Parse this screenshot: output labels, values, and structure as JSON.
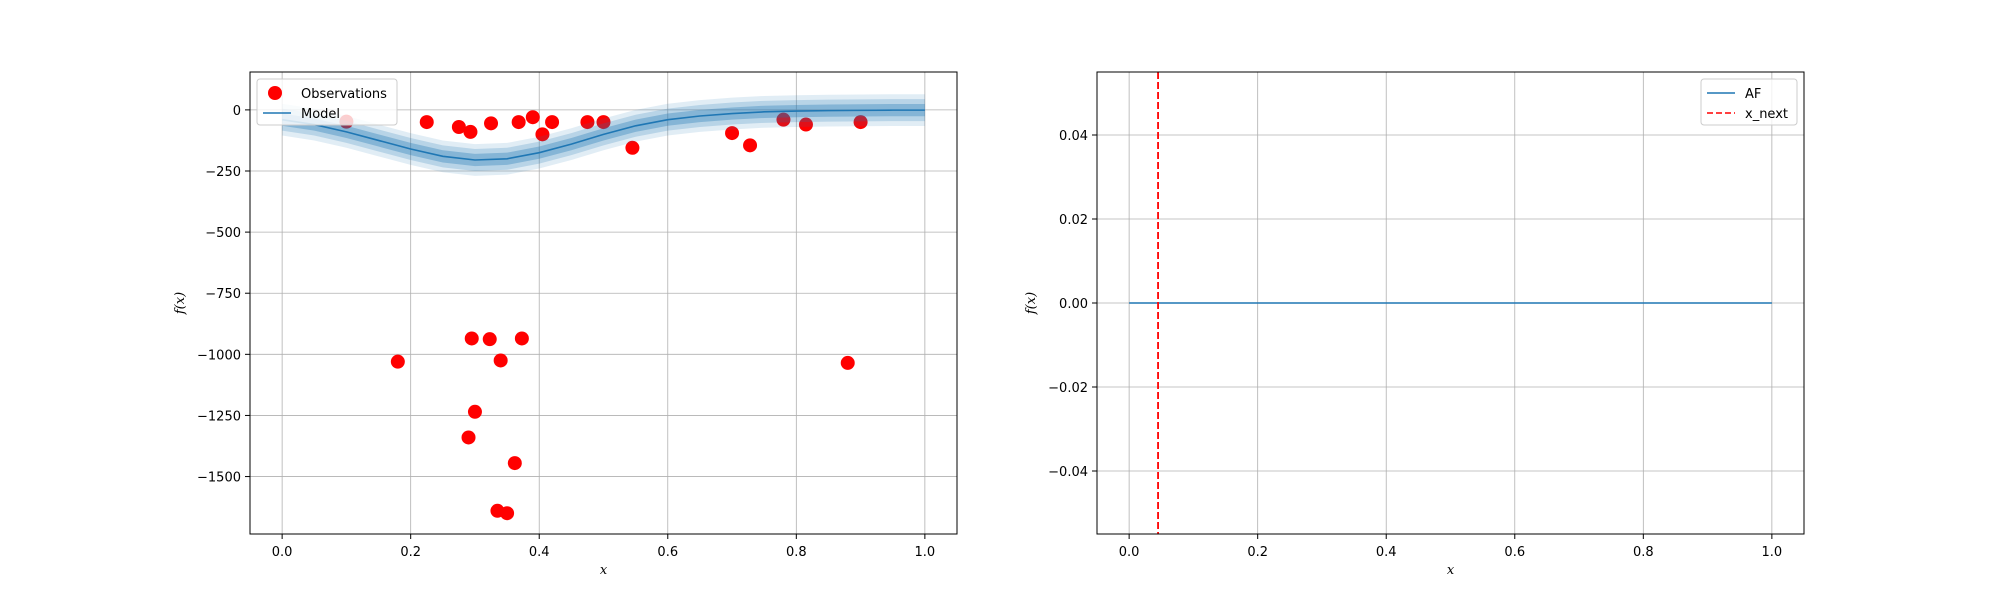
{
  "chart_data": [
    {
      "type": "scatter",
      "title": "",
      "xlabel": "x",
      "ylabel": "f(x)",
      "xlim": [
        -0.05,
        1.05
      ],
      "ylim": [
        -1735,
        155
      ],
      "xticks": [
        0.0,
        0.2,
        0.4,
        0.6,
        0.8,
        1.0
      ],
      "xtick_labels": [
        "0.0",
        "0.2",
        "0.4",
        "0.6",
        "0.8",
        "1.0"
      ],
      "yticks": [
        0,
        -250,
        -500,
        -750,
        -1000,
        -1250,
        -1500
      ],
      "ytick_labels": [
        "0",
        "−250",
        "−500",
        "−750",
        "−1000",
        "−1250",
        "−1500"
      ],
      "grid": true,
      "legend": {
        "placement": "upper-left",
        "entries": [
          {
            "label": "Observations",
            "marker": "circle",
            "color": "#ff0000"
          },
          {
            "label": "Model",
            "marker": "line",
            "color": "#1f77b4"
          }
        ]
      },
      "series": [
        {
          "name": "Observations",
          "kind": "scatter",
          "color": "#ff0000",
          "points": [
            {
              "x": 0.1,
              "y": -48
            },
            {
              "x": 0.18,
              "y": -1030
            },
            {
              "x": 0.225,
              "y": -50
            },
            {
              "x": 0.275,
              "y": -70
            },
            {
              "x": 0.29,
              "y": -1340
            },
            {
              "x": 0.293,
              "y": -90
            },
            {
              "x": 0.295,
              "y": -935
            },
            {
              "x": 0.3,
              "y": -1235
            },
            {
              "x": 0.323,
              "y": -938
            },
            {
              "x": 0.325,
              "y": -55
            },
            {
              "x": 0.335,
              "y": -1640
            },
            {
              "x": 0.34,
              "y": -1025
            },
            {
              "x": 0.35,
              "y": -1650
            },
            {
              "x": 0.362,
              "y": -1445
            },
            {
              "x": 0.368,
              "y": -50
            },
            {
              "x": 0.373,
              "y": -935
            },
            {
              "x": 0.39,
              "y": -30
            },
            {
              "x": 0.405,
              "y": -100
            },
            {
              "x": 0.42,
              "y": -50
            },
            {
              "x": 0.475,
              "y": -50
            },
            {
              "x": 0.5,
              "y": -50
            },
            {
              "x": 0.545,
              "y": -155
            },
            {
              "x": 0.7,
              "y": -95
            },
            {
              "x": 0.728,
              "y": -145
            },
            {
              "x": 0.78,
              "y": -40
            },
            {
              "x": 0.815,
              "y": -60
            },
            {
              "x": 0.88,
              "y": -1035
            },
            {
              "x": 0.9,
              "y": -50
            }
          ]
        },
        {
          "name": "Model",
          "kind": "line",
          "color": "#1f77b4",
          "x": [
            0.0,
            0.05,
            0.1,
            0.15,
            0.2,
            0.25,
            0.3,
            0.35,
            0.4,
            0.45,
            0.5,
            0.55,
            0.6,
            0.65,
            0.7,
            0.75,
            0.8,
            0.85,
            0.9,
            0.95,
            1.0
          ],
          "y": [
            -40,
            -60,
            -90,
            -125,
            -160,
            -190,
            -205,
            -200,
            -175,
            -140,
            -100,
            -65,
            -40,
            -25,
            -15,
            -8,
            -5,
            -3,
            -2,
            -1,
            -1
          ],
          "bands": [
            {
              "halfwidth": 25,
              "opacity": 0.55
            },
            {
              "halfwidth": 45,
              "opacity": 0.35
            },
            {
              "halfwidth": 65,
              "opacity": 0.22
            }
          ]
        }
      ]
    },
    {
      "type": "line",
      "title": "",
      "xlabel": "x",
      "ylabel": "f(x)",
      "xlim": [
        -0.05,
        1.05
      ],
      "ylim": [
        -0.055,
        0.055
      ],
      "xticks": [
        0.0,
        0.2,
        0.4,
        0.6,
        0.8,
        1.0
      ],
      "xtick_labels": [
        "0.0",
        "0.2",
        "0.4",
        "0.6",
        "0.8",
        "1.0"
      ],
      "yticks": [
        0.04,
        0.02,
        0.0,
        -0.02,
        -0.04
      ],
      "ytick_labels": [
        "0.04",
        "0.02",
        "0.00",
        "−0.02",
        "−0.04"
      ],
      "grid": true,
      "legend": {
        "placement": "upper-right",
        "entries": [
          {
            "label": "AF",
            "marker": "line",
            "color": "#1f77b4"
          },
          {
            "label": "x_next",
            "marker": "dashed",
            "color": "#ff0000"
          }
        ]
      },
      "series": [
        {
          "name": "AF",
          "kind": "line",
          "color": "#1f77b4",
          "x": [
            0.0,
            1.0
          ],
          "y": [
            0.0,
            0.0
          ]
        },
        {
          "name": "x_next",
          "kind": "vline",
          "color": "#ff0000",
          "x": 0.045
        }
      ]
    }
  ]
}
